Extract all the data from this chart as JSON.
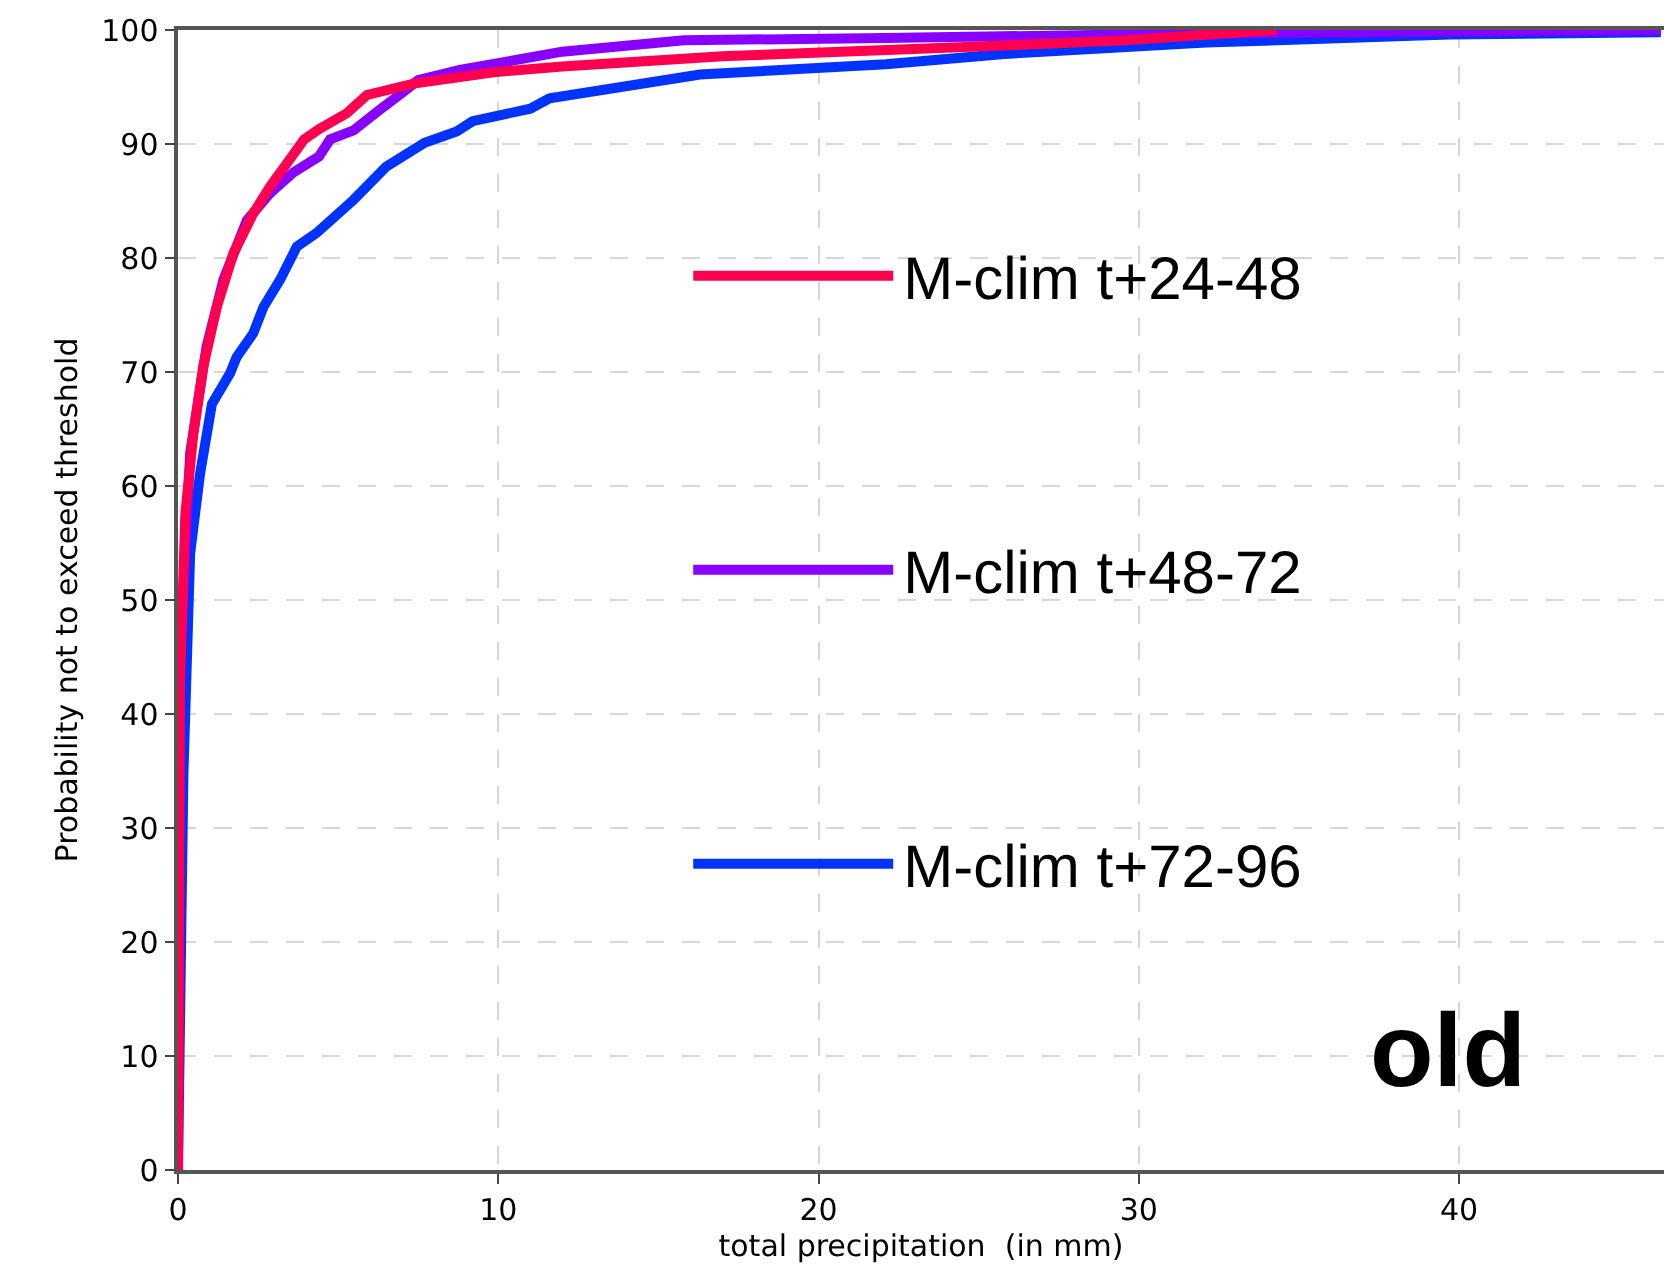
{
  "chart_data": {
    "type": "line",
    "xlabel": "total precipitation  (in mm)",
    "ylabel": "Probability not to exceed threshold",
    "xlim": [
      0,
      46.4
    ],
    "xticks": [
      0,
      10,
      20,
      30,
      40
    ],
    "ylim": [
      0,
      100
    ],
    "yticks": [
      0,
      10,
      20,
      30,
      40,
      50,
      60,
      70,
      80,
      90,
      100
    ],
    "grid": true,
    "legend": "right",
    "marker": "none",
    "line_style": "solid",
    "annotations": [
      "old"
    ],
    "series": [
      {
        "name": "M-clim t+24-48",
        "color": "#ff0050",
        "x": [
          0,
          0.06,
          0.23,
          0.48,
          0.79,
          1.21,
          1.73,
          2.35,
          2.88,
          3.4,
          3.94,
          4.4,
          5.27,
          5.9,
          7.36,
          9.85,
          12.0,
          17.0,
          24.6,
          29.6,
          34.3
        ],
        "values": [
          0,
          42.5,
          57.6,
          64.6,
          70.5,
          75.7,
          80.4,
          83.9,
          86.3,
          88.3,
          90.4,
          91.3,
          92.7,
          94.3,
          95.3,
          96.3,
          96.8,
          97.7,
          98.5,
          99.1,
          100
        ]
      },
      {
        "name": "M-clim t+48-72",
        "color": "#8800ff",
        "x": [
          0,
          0.02,
          0.38,
          0.89,
          1.42,
          2.15,
          2.88,
          3.6,
          4.4,
          4.75,
          5.48,
          6.3,
          7.1,
          7.5,
          8.8,
          12.0,
          15.8,
          22.1,
          32.1,
          46.3
        ],
        "values": [
          0,
          41.9,
          62.9,
          72.2,
          78.1,
          83.3,
          85.7,
          87.5,
          88.9,
          90.4,
          91.2,
          93.0,
          94.7,
          95.6,
          96.5,
          98.1,
          99.1,
          99.3,
          99.7,
          100
        ]
      },
      {
        "name": "M-clim t+72-96",
        "color": "#0033ff",
        "x": [
          0,
          0.17,
          0.38,
          0.69,
          1.06,
          1.63,
          1.83,
          2.35,
          2.67,
          3.19,
          3.71,
          4.33,
          5.48,
          6.5,
          7.7,
          8.7,
          9.2,
          11.0,
          11.6,
          16.3,
          22.1,
          25.8,
          32.1,
          39.7,
          46.3
        ],
        "values": [
          0,
          34.8,
          54.1,
          61.1,
          67.2,
          69.9,
          71.3,
          73.4,
          75.7,
          78.1,
          81.0,
          82.2,
          85.1,
          88.0,
          90.1,
          91.1,
          92.0,
          93.1,
          94.0,
          96.1,
          97.0,
          97.9,
          98.9,
          99.6,
          99.8
        ]
      }
    ]
  }
}
